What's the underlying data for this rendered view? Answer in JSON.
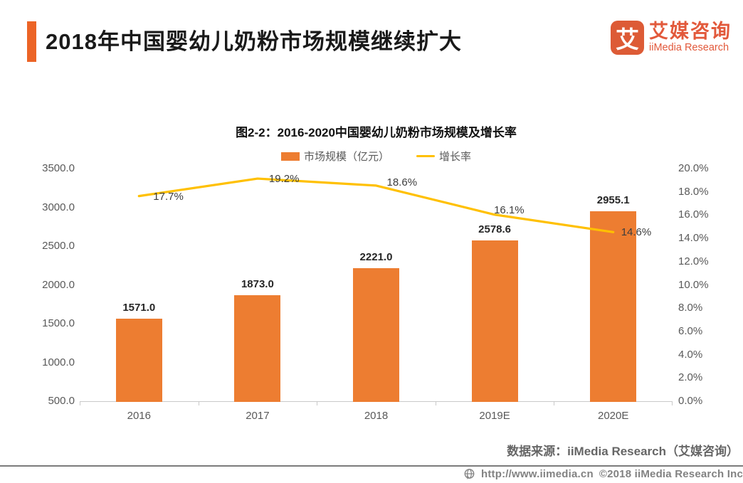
{
  "header": {
    "title": "2018年中国婴幼儿奶粉市场规模继续扩大",
    "logo": {
      "icon_char": "艾",
      "name_cn": "艾媒咨询",
      "name_en": "iiMedia Research"
    }
  },
  "chart_data": {
    "type": "bar",
    "title": "图2-2：2016-2020中国婴幼儿奶粉市场规模及增长率",
    "categories": [
      "2016",
      "2017",
      "2018",
      "2019E",
      "2020E"
    ],
    "series": [
      {
        "name": "市场规模（亿元）",
        "type": "bar",
        "color": "#ED7D31",
        "values": [
          1571.0,
          1873.0,
          2221.0,
          2578.6,
          2955.1
        ],
        "labels": [
          "1571.0",
          "1873.0",
          "2221.0",
          "2578.6",
          "2955.1"
        ]
      },
      {
        "name": "增长率",
        "type": "line",
        "color": "#FFC000",
        "values": [
          17.7,
          19.2,
          18.6,
          16.1,
          14.6
        ],
        "labels": [
          "17.7%",
          "19.2%",
          "18.6%",
          "16.1%",
          "14.6%"
        ]
      }
    ],
    "left_axis": {
      "min": 500,
      "max": 3500,
      "step": 500,
      "ticks": [
        "3500.0",
        "3000.0",
        "2500.0",
        "2000.0",
        "1500.0",
        "1000.0",
        "500.0"
      ]
    },
    "right_axis": {
      "min": 0,
      "max": 20,
      "step": 2,
      "ticks": [
        "20.0%",
        "18.0%",
        "16.0%",
        "14.0%",
        "12.0%",
        "10.0%",
        "8.0%",
        "6.0%",
        "4.0%",
        "2.0%",
        "0.0%"
      ]
    },
    "legend_position": "top-center",
    "grid": false
  },
  "source_note": "数据来源：iiMedia Research（艾媒咨询）",
  "footer": {
    "url": "http://www.iimedia.cn",
    "copyright": "©2018  iiMedia Research Inc"
  }
}
